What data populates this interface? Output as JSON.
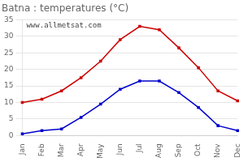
{
  "chart_data": {
    "type": "line",
    "title": "Batna : temperatures (°C)",
    "categories": [
      "Jan",
      "Feb",
      "Mar",
      "Apr",
      "May",
      "Jun",
      "Jul",
      "Aug",
      "Sep",
      "Oct",
      "Nov",
      "Dec"
    ],
    "series": [
      {
        "color": "#cc0000",
        "values": [
          10.0,
          11.0,
          13.5,
          17.5,
          22.5,
          29.0,
          33.0,
          32.0,
          26.5,
          20.5,
          13.5,
          10.5
        ]
      },
      {
        "color": "#0000cc",
        "values": [
          0.5,
          1.5,
          2.0,
          5.5,
          9.5,
          14.0,
          16.5,
          16.5,
          13.0,
          8.5,
          3.0,
          1.5
        ]
      }
    ],
    "ylim": [
      0,
      35
    ],
    "yticks": [
      0,
      5,
      10,
      15,
      20,
      25,
      30,
      35
    ],
    "grid": true,
    "marker": "square",
    "line_style": "solid",
    "annotation": "www.allmetsat.com"
  }
}
